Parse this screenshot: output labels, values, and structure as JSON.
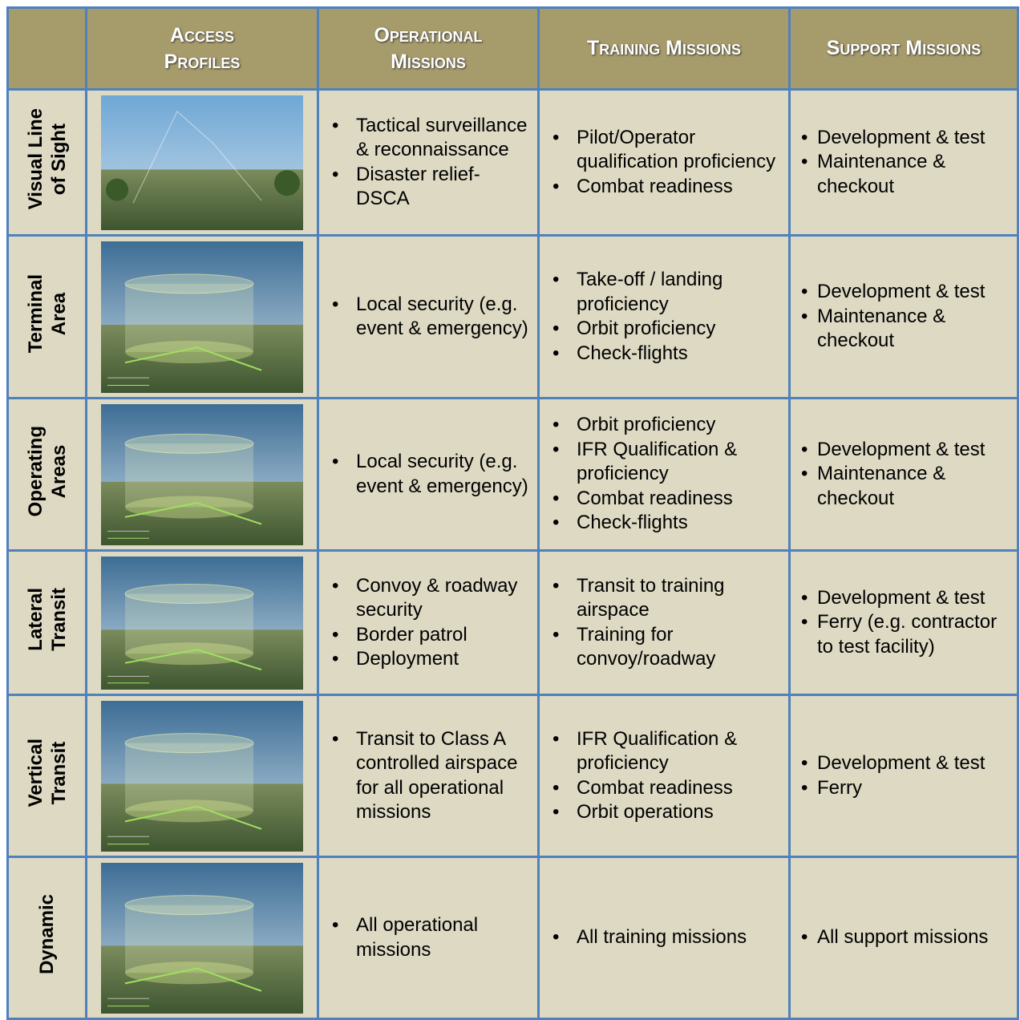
{
  "table": {
    "header": [
      "",
      "Access Profiles",
      "Operational Missions",
      "Training Missions",
      "Support Missions"
    ],
    "rows": [
      {
        "label": [
          "Visual Line",
          "of Sight"
        ],
        "operational": [
          "Tactical surveillance & reconnaissance",
          "Disaster relief-DSCA"
        ],
        "training": [
          "Pilot/Operator qualification proficiency",
          "Combat readiness"
        ],
        "support": [
          "Development & test",
          "Maintenance & checkout"
        ]
      },
      {
        "label": [
          "Terminal",
          "Area"
        ],
        "operational": [
          "Local security (e.g. event & emergency)"
        ],
        "training": [
          "Take-off / landing proficiency",
          "Orbit proficiency",
          "Check-flights"
        ],
        "support": [
          "Development & test",
          "Maintenance & checkout"
        ]
      },
      {
        "label": [
          "Operating",
          "Areas"
        ],
        "operational": [
          "Local security (e.g. event & emergency)"
        ],
        "training": [
          "Orbit proficiency",
          "IFR Qualification & proficiency",
          "Combat readiness",
          "Check-flights"
        ],
        "support": [
          "Development & test",
          "Maintenance & checkout"
        ]
      },
      {
        "label": [
          "Lateral",
          "Transit"
        ],
        "operational": [
          "Convoy & roadway security",
          "Border patrol",
          "Deployment"
        ],
        "training": [
          "Transit to training airspace",
          "Training for convoy/roadway"
        ],
        "support": [
          "Development & test",
          "Ferry (e.g. contractor to test facility)"
        ]
      },
      {
        "label": [
          "Vertical",
          "Transit"
        ],
        "operational": [
          "Transit to Class A controlled airspace for all operational missions"
        ],
        "training": [
          "IFR Qualification & proficiency",
          "Combat readiness",
          "Orbit operations"
        ],
        "support": [
          "Development & test",
          "Ferry"
        ]
      },
      {
        "label": [
          "Dynamic"
        ],
        "operational": [
          "All operational missions"
        ],
        "training": [
          "All training missions"
        ],
        "support": [
          "All support missions"
        ]
      }
    ]
  }
}
